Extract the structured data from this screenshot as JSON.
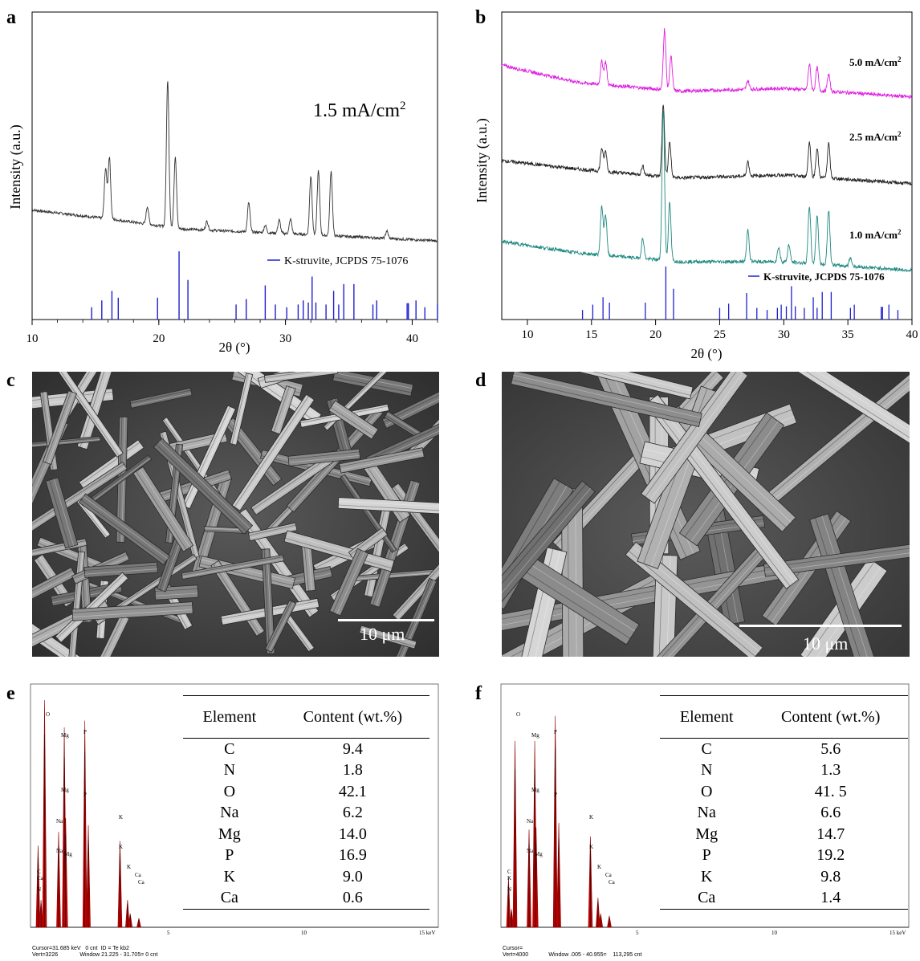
{
  "panels": {
    "a": {
      "letter": "a",
      "annotation_main": "1.5 mA/cm",
      "annotation_sup": "2",
      "ylabel": "Intensity (a.u.)",
      "xlabel": "2θ (°)",
      "legend": "K-struvite, JCPDS 75-1076",
      "colors": {
        "pattern": "#333333",
        "reference": "#2020d0"
      }
    },
    "b": {
      "letter": "b",
      "ylabel": "Intensity (a.u.)",
      "xlabel": "2θ (°)",
      "legend": "K-struvite, JCPDS 75-1076",
      "series_labels": [
        "5.0 mA/cm",
        "2.5 mA/cm",
        "1.0 mA/cm"
      ],
      "series_sup": "2",
      "colors": [
        "#e020e0",
        "#222222",
        "#1f8a80"
      ],
      "reference_color": "#2020d0"
    },
    "c": {
      "letter": "c",
      "scale_bar": "10 μm"
    },
    "d": {
      "letter": "d",
      "scale_bar": "10 μm"
    },
    "e": {
      "letter": "e",
      "table_headers": [
        "Element",
        "Content (wt.%)"
      ],
      "rows": [
        {
          "element": "C",
          "content": "9.4"
        },
        {
          "element": "N",
          "content": "1.8"
        },
        {
          "element": "O",
          "content": "42.1"
        },
        {
          "element": "Na",
          "content": "6.2"
        },
        {
          "element": "Mg",
          "content": "14.0"
        },
        {
          "element": "P",
          "content": "16.9"
        },
        {
          "element": "K",
          "content": "9.0"
        },
        {
          "element": "Ca",
          "content": "0.6"
        }
      ],
      "axis_ticks": [
        "5",
        "10",
        "15 keV"
      ],
      "footer_line1": "Cursor=31.685 keV   0 cnt  ID = Te kb2",
      "footer_line2": "Vert=3226              Window 21.225 - 31.705= 0 cnt",
      "peak_labels": [
        "O",
        "Mg",
        "P",
        "Mg",
        "P",
        "Na",
        "Na",
        "Mg",
        "K",
        "K",
        "K",
        "Ca",
        "Ca",
        "C",
        "Ca",
        "N"
      ]
    },
    "f": {
      "letter": "f",
      "table_headers": [
        "Element",
        "Content (wt.%)"
      ],
      "rows": [
        {
          "element": "C",
          "content": "5.6"
        },
        {
          "element": "N",
          "content": "1.3"
        },
        {
          "element": "O",
          "content": "41. 5"
        },
        {
          "element": "Na",
          "content": "6.6"
        },
        {
          "element": "Mg",
          "content": "14.7"
        },
        {
          "element": "P",
          "content": "19.2"
        },
        {
          "element": "K",
          "content": "9.8"
        },
        {
          "element": "Ca",
          "content": "1.4"
        }
      ],
      "axis_ticks": [
        "5",
        "10",
        "15 keV"
      ],
      "footer_line1": "Cursor=",
      "footer_line2": "Vert=4000             Window .005 - 40.955=    113,295 cnt",
      "peak_labels": [
        "O",
        "Mg",
        "P",
        "Mg",
        "P",
        "Na",
        "Na",
        "Mg",
        "K",
        "K",
        "K",
        "Ca",
        "Ca",
        "C",
        "K",
        "N"
      ]
    }
  },
  "chart_data": [
    {
      "type": "line",
      "panel": "a",
      "xlabel": "2θ (°)",
      "ylabel": "Intensity (a.u.)",
      "xlim": [
        10,
        42
      ],
      "xticks": [
        10,
        20,
        30,
        40
      ],
      "series": [
        {
          "name": "1.5 mA/cm2",
          "baseline": [
            [
              10,
              0.42
            ],
            [
              16,
              0.36
            ],
            [
              22,
              0.29
            ],
            [
              30,
              0.26
            ],
            [
              42,
              0.21
            ]
          ],
          "peaks": [
            [
              15.8,
              0.34
            ],
            [
              16.1,
              0.42
            ],
            [
              19.1,
              0.12
            ],
            [
              20.7,
              1.0
            ],
            [
              21.3,
              0.48
            ],
            [
              23.8,
              0.06
            ],
            [
              27.1,
              0.2
            ],
            [
              28.4,
              0.05
            ],
            [
              29.5,
              0.09
            ],
            [
              30.4,
              0.1
            ],
            [
              32.0,
              0.4
            ],
            [
              32.6,
              0.44
            ],
            [
              33.6,
              0.44
            ],
            [
              38.0,
              0.05
            ]
          ]
        },
        {
          "name": "K-struvite, JCPDS 75-1076",
          "sticks": [
            [
              14.7,
              0.18
            ],
            [
              15.5,
              0.28
            ],
            [
              16.3,
              0.42
            ],
            [
              16.8,
              0.32
            ],
            [
              19.9,
              0.32
            ],
            [
              21.6,
              1.0
            ],
            [
              22.3,
              0.58
            ],
            [
              26.1,
              0.22
            ],
            [
              26.9,
              0.3
            ],
            [
              28.4,
              0.5
            ],
            [
              29.2,
              0.22
            ],
            [
              30.1,
              0.18
            ],
            [
              31.0,
              0.22
            ],
            [
              31.4,
              0.28
            ],
            [
              31.8,
              0.25
            ],
            [
              32.1,
              0.63
            ],
            [
              32.4,
              0.25
            ],
            [
              33.2,
              0.22
            ],
            [
              33.8,
              0.42
            ],
            [
              34.2,
              0.22
            ],
            [
              34.6,
              0.52
            ],
            [
              35.4,
              0.52
            ],
            [
              36.9,
              0.22
            ],
            [
              37.2,
              0.28
            ],
            [
              39.6,
              0.24
            ],
            [
              39.7,
              0.24
            ],
            [
              40.3,
              0.28
            ],
            [
              41.0,
              0.18
            ],
            [
              42.0,
              0.22
            ]
          ]
        }
      ]
    },
    {
      "type": "line",
      "panel": "b",
      "xlabel": "2θ (°)",
      "ylabel": "Intensity (a.u.)",
      "xlim": [
        8,
        40
      ],
      "xticks": [
        10,
        15,
        20,
        25,
        30,
        35,
        40
      ],
      "series": [
        {
          "name": "5.0 mA/cm2",
          "offset": 0.78,
          "baseline": [
            [
              8,
              0.1
            ],
            [
              14,
              0.04
            ],
            [
              22,
              0.01
            ],
            [
              30,
              0.02
            ],
            [
              40,
              -0.01
            ]
          ],
          "peaks": [
            [
              15.8,
              0.08
            ],
            [
              16.1,
              0.08
            ],
            [
              20.7,
              0.21
            ],
            [
              21.2,
              0.12
            ],
            [
              27.2,
              0.03
            ],
            [
              32.0,
              0.09
            ],
            [
              32.6,
              0.08
            ],
            [
              33.5,
              0.06
            ]
          ]
        },
        {
          "name": "2.5 mA/cm2",
          "offset": 0.47,
          "baseline": [
            [
              8,
              0.08
            ],
            [
              14,
              0.05
            ],
            [
              22,
              0.02
            ],
            [
              30,
              0.03
            ],
            [
              40,
              0.0
            ]
          ],
          "peaks": [
            [
              15.8,
              0.08
            ],
            [
              16.1,
              0.07
            ],
            [
              19.0,
              0.03
            ],
            [
              20.6,
              0.25
            ],
            [
              21.1,
              0.12
            ],
            [
              27.2,
              0.05
            ],
            [
              32.0,
              0.12
            ],
            [
              32.6,
              0.1
            ],
            [
              33.5,
              0.12
            ]
          ]
        },
        {
          "name": "1.0 mA/cm2",
          "offset": 0.17,
          "baseline": [
            [
              8,
              0.1
            ],
            [
              14,
              0.06
            ],
            [
              22,
              0.03
            ],
            [
              30,
              0.03
            ],
            [
              40,
              0.0
            ]
          ],
          "peaks": [
            [
              15.8,
              0.17
            ],
            [
              16.1,
              0.14
            ],
            [
              19.0,
              0.07
            ],
            [
              20.6,
              0.52
            ],
            [
              21.1,
              0.2
            ],
            [
              27.2,
              0.11
            ],
            [
              29.6,
              0.05
            ],
            [
              30.4,
              0.06
            ],
            [
              32.0,
              0.2
            ],
            [
              32.6,
              0.17
            ],
            [
              33.5,
              0.19
            ],
            [
              35.2,
              0.03
            ]
          ]
        },
        {
          "name": "K-struvite, JCPDS 75-1076",
          "sticks": [
            [
              14.3,
              0.18
            ],
            [
              15.1,
              0.28
            ],
            [
              15.9,
              0.42
            ],
            [
              16.4,
              0.32
            ],
            [
              19.2,
              0.32
            ],
            [
              20.8,
              1.0
            ],
            [
              21.4,
              0.58
            ],
            [
              25.0,
              0.22
            ],
            [
              25.7,
              0.3
            ],
            [
              27.1,
              0.5
            ],
            [
              27.9,
              0.22
            ],
            [
              28.7,
              0.18
            ],
            [
              29.5,
              0.22
            ],
            [
              29.8,
              0.28
            ],
            [
              30.2,
              0.25
            ],
            [
              30.6,
              0.63
            ],
            [
              30.9,
              0.25
            ],
            [
              31.6,
              0.22
            ],
            [
              32.3,
              0.42
            ],
            [
              32.6,
              0.22
            ],
            [
              33.0,
              0.52
            ],
            [
              33.7,
              0.52
            ],
            [
              35.2,
              0.22
            ],
            [
              35.5,
              0.28
            ],
            [
              37.6,
              0.24
            ],
            [
              37.7,
              0.24
            ],
            [
              38.2,
              0.28
            ],
            [
              38.9,
              0.18
            ]
          ]
        }
      ]
    },
    {
      "type": "bar",
      "panel": "e",
      "xlabel": "keV",
      "xlim": [
        0,
        15
      ],
      "xticks": [
        5,
        10,
        15
      ],
      "peaks_keV": [
        [
          0.28,
          0.36
        ],
        [
          0.39,
          0.12
        ],
        [
          0.52,
          1.0
        ],
        [
          1.04,
          0.42
        ],
        [
          1.25,
          0.88
        ],
        [
          1.3,
          0.48
        ],
        [
          2.01,
          0.91
        ],
        [
          2.14,
          0.45
        ],
        [
          3.31,
          0.38
        ],
        [
          3.59,
          0.12
        ],
        [
          3.69,
          0.06
        ],
        [
          4.01,
          0.04
        ]
      ]
    },
    {
      "type": "bar",
      "panel": "f",
      "xlabel": "keV",
      "xlim": [
        0,
        15
      ],
      "xticks": [
        5,
        10,
        15
      ],
      "peaks_keV": [
        [
          0.28,
          0.22
        ],
        [
          0.39,
          0.08
        ],
        [
          0.52,
          0.82
        ],
        [
          1.04,
          0.43
        ],
        [
          1.25,
          0.82
        ],
        [
          1.3,
          0.44
        ],
        [
          2.01,
          0.93
        ],
        [
          2.14,
          0.46
        ],
        [
          3.31,
          0.4
        ],
        [
          3.59,
          0.13
        ],
        [
          3.69,
          0.06
        ],
        [
          4.01,
          0.05
        ]
      ]
    }
  ]
}
